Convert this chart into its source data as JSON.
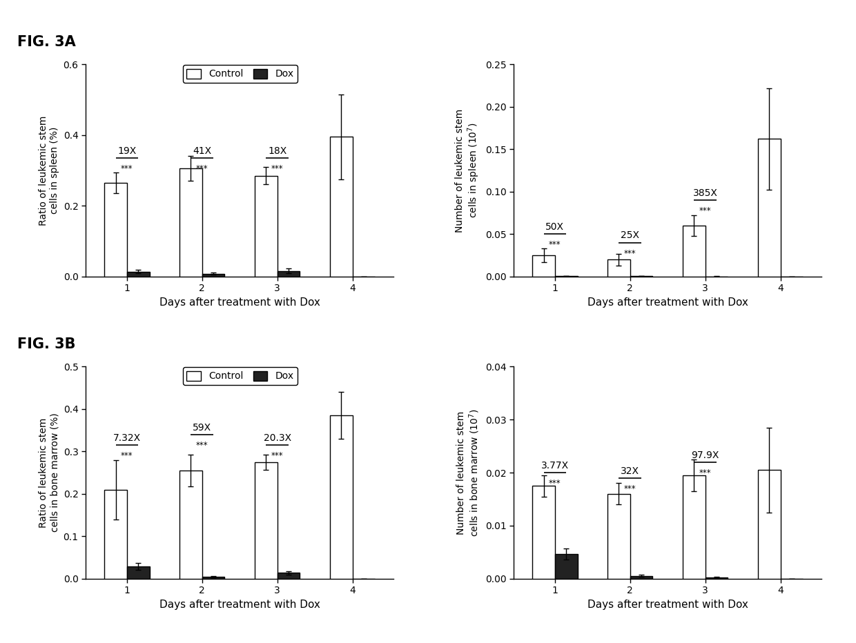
{
  "fig3A_left": {
    "ylabel": "Ratio of leukemic stem\ncells in spleen (%)",
    "xlabel": "Days after treatment with Dox",
    "days": [
      1,
      2,
      3,
      4
    ],
    "control_vals": [
      0.265,
      0.305,
      0.285,
      0.395
    ],
    "control_err": [
      0.03,
      0.035,
      0.025,
      0.12
    ],
    "dox_vals": [
      0.014,
      0.0075,
      0.016,
      0.0
    ],
    "dox_err": [
      0.005,
      0.003,
      0.006,
      0.0
    ],
    "ylim": [
      0,
      0.6
    ],
    "yticks": [
      0.0,
      0.2,
      0.4,
      0.6
    ],
    "ytick_labels": [
      "0.0",
      "0.2",
      "0.4",
      "0.6"
    ],
    "fold_labels": [
      "19X",
      "41X",
      "18X"
    ],
    "sig_line_y": [
      0.335,
      0.335,
      0.335
    ]
  },
  "fig3A_right": {
    "ylabel": "Number of leukemic stem\ncells in spleen (10$^7$)",
    "xlabel": "Days after treatment with Dox",
    "days": [
      1,
      2,
      3,
      4
    ],
    "control_vals": [
      0.025,
      0.02,
      0.06,
      0.162
    ],
    "control_err": [
      0.008,
      0.007,
      0.012,
      0.06
    ],
    "dox_vals": [
      0.0005,
      0.0008,
      0.00016,
      0.0
    ],
    "dox_err": [
      0.0002,
      0.0002,
      0.0001,
      0.0
    ],
    "ylim": [
      0,
      0.25
    ],
    "yticks": [
      0.0,
      0.05,
      0.1,
      0.15,
      0.2,
      0.25
    ],
    "ytick_labels": [
      "0.00",
      "0.05",
      "0.10",
      "0.15",
      "0.20",
      "0.25"
    ],
    "fold_labels": [
      "50X",
      "25X",
      "385X"
    ],
    "sig_line_y": [
      0.05,
      0.04,
      0.09
    ]
  },
  "fig3B_left": {
    "ylabel": "Ratio of leukemic stem\ncells in bone marrow (%)",
    "xlabel": "Days after treatment with Dox",
    "days": [
      1,
      2,
      3,
      4
    ],
    "control_vals": [
      0.21,
      0.255,
      0.275,
      0.385
    ],
    "control_err": [
      0.07,
      0.038,
      0.018,
      0.055
    ],
    "dox_vals": [
      0.0287,
      0.0043,
      0.0135,
      0.0
    ],
    "dox_err": [
      0.008,
      0.002,
      0.004,
      0.0
    ],
    "ylim": [
      0,
      0.5
    ],
    "yticks": [
      0.0,
      0.1,
      0.2,
      0.3,
      0.4,
      0.5
    ],
    "ytick_labels": [
      "0.0",
      "0.1",
      "0.2",
      "0.3",
      "0.4",
      "0.5"
    ],
    "fold_labels": [
      "7.32X",
      "59X",
      "20.3X"
    ],
    "sig_line_y": [
      0.315,
      0.34,
      0.315
    ]
  },
  "fig3B_right": {
    "ylabel": "Number of leukemic stem\ncells in bone marrow (10$^7$)",
    "xlabel": "Days after treatment with Dox",
    "days": [
      1,
      2,
      3,
      4
    ],
    "control_vals": [
      0.0175,
      0.016,
      0.0195,
      0.0205
    ],
    "control_err": [
      0.002,
      0.002,
      0.003,
      0.008
    ],
    "dox_vals": [
      0.00464,
      0.0005,
      0.0002,
      0.0
    ],
    "dox_err": [
      0.001,
      0.0002,
      0.0001,
      0.0
    ],
    "ylim": [
      0,
      0.04
    ],
    "yticks": [
      0.0,
      0.01,
      0.02,
      0.03,
      0.04
    ],
    "ytick_labels": [
      "0.00",
      "0.01",
      "0.02",
      "0.03",
      "0.04"
    ],
    "fold_labels": [
      "3.77X",
      "32X",
      "97.9X"
    ],
    "sig_line_y": [
      0.02,
      0.019,
      0.022
    ]
  },
  "bar_width": 0.3,
  "control_color": "white",
  "dox_color": "#222222",
  "edge_color": "black",
  "fig_label_A": "FIG. 3A",
  "fig_label_B": "FIG. 3B",
  "legend_control": "Control",
  "legend_dox": "Dox"
}
